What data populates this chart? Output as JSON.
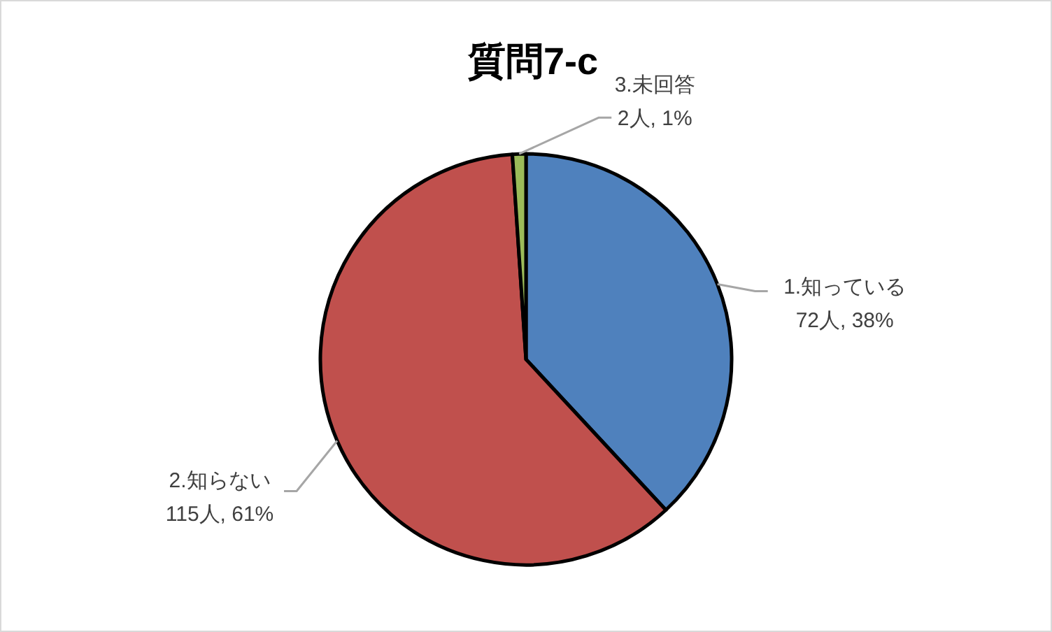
{
  "chart_data": {
    "type": "pie",
    "title": "質問7-c",
    "categories": [
      "1.知っている",
      "2.知らない",
      "3.未回答"
    ],
    "values": [
      72,
      115,
      2
    ],
    "colors": [
      "#4f81bd",
      "#c0504d",
      "#9bbb59"
    ],
    "value_labels": [
      "72人, 38%",
      "115人, 61%",
      "2人, 1%"
    ]
  }
}
